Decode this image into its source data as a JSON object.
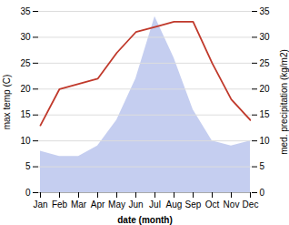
{
  "chart_data": {
    "type": "line",
    "xlabel": "date (month)",
    "ylabel": "max temp (C)",
    "y2label": "med. precipitation (kg/m2)",
    "categories": [
      "Jan",
      "Feb",
      "Mar",
      "Apr",
      "May",
      "Jun",
      "Jul",
      "Aug",
      "Sep",
      "Oct",
      "Nov",
      "Dec"
    ],
    "series": [
      {
        "type": "area",
        "color": "#c5cef0",
        "axis": "y2",
        "values": [
          8,
          7,
          7,
          9,
          14,
          22,
          34,
          26,
          16,
          10,
          9,
          10
        ]
      },
      {
        "type": "line",
        "color": "#c0392b",
        "values": [
          13,
          20,
          21,
          22,
          27,
          31,
          32,
          33,
          33,
          25,
          18,
          14
        ]
      }
    ],
    "ylim": [
      0,
      35
    ],
    "yticks": [
      0,
      5,
      10,
      15,
      20,
      25,
      30,
      35
    ],
    "y2lim": [
      0,
      35
    ],
    "y2ticks": [
      0,
      5,
      10,
      15,
      20,
      25,
      30,
      35
    ],
    "grid": true
  }
}
